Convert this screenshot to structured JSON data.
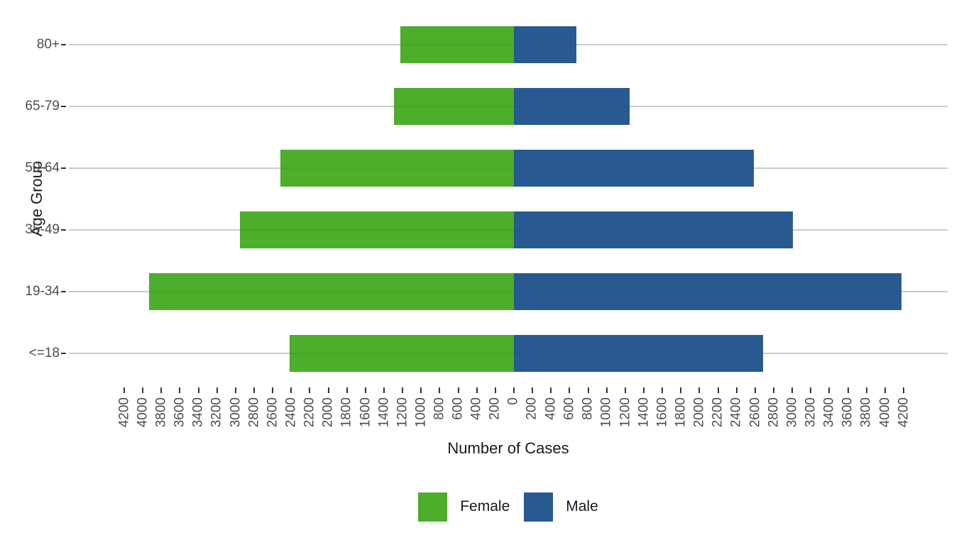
{
  "colors": {
    "female": "#4CAE2B",
    "male": "#285A91",
    "gridline": "#D5D5D5",
    "tick_mark": "#333333",
    "axis_text": "#4D4D4D",
    "title_text": "#1A1A1A",
    "background": "#FFFFFF"
  },
  "chart_data": {
    "type": "bar",
    "subtype": "population-pyramid-diverging",
    "orientation": "horizontal",
    "title": "",
    "xlabel": "Number of Cases",
    "ylabel": "Age Group",
    "categories": [
      "80+",
      "65-79",
      "50-64",
      "35-49",
      "19-34",
      "<=18"
    ],
    "series": [
      {
        "name": "Female",
        "color": "#4CAE2B",
        "direction": "left",
        "values": [
          1225,
          1290,
          2520,
          2955,
          3935,
          2420
        ]
      },
      {
        "name": "Male",
        "color": "#285A91",
        "direction": "right",
        "values": [
          670,
          1245,
          2585,
          3005,
          4175,
          2685
        ]
      }
    ],
    "xlim": [
      -4400,
      4400
    ],
    "x_tick_step": 200,
    "x_tick_values": [
      -4200,
      -4000,
      -3800,
      -3600,
      -3400,
      -3200,
      -3000,
      -2800,
      -2600,
      -2400,
      -2200,
      -2000,
      -1800,
      -1600,
      -1400,
      -1200,
      -1000,
      -800,
      -600,
      -400,
      -200,
      0,
      200,
      400,
      600,
      800,
      1000,
      1200,
      1400,
      1600,
      1800,
      2000,
      2200,
      2400,
      2600,
      2800,
      3000,
      3200,
      3400,
      3600,
      3800,
      4000,
      4200
    ],
    "x_tick_labels": [
      "4200",
      "4000",
      "3800",
      "3600",
      "3400",
      "3200",
      "3000",
      "2800",
      "2600",
      "2400",
      "2200",
      "2000",
      "1800",
      "1600",
      "1400",
      "1200",
      "1000",
      "800",
      "600",
      "400",
      "200",
      "0",
      "200",
      "400",
      "600",
      "800",
      "1000",
      "1200",
      "1400",
      "1600",
      "1800",
      "2000",
      "2200",
      "2400",
      "2600",
      "2800",
      "3000",
      "3200",
      "3400",
      "3600",
      "3800",
      "4000",
      "4200"
    ],
    "grid": "horizontal-major-only",
    "legend_position": "bottom"
  },
  "legend": {
    "items": [
      {
        "label": "Female",
        "color": "#4CAE2B"
      },
      {
        "label": "Male",
        "color": "#285A91"
      }
    ]
  }
}
